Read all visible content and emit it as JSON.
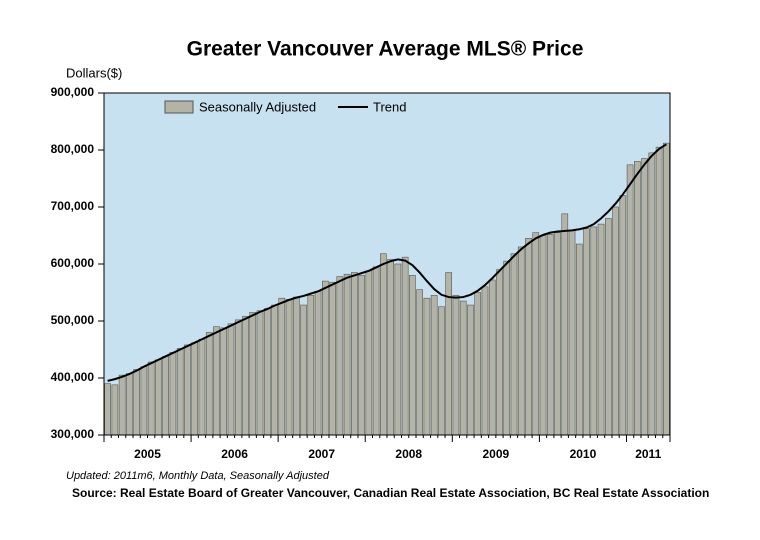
{
  "chart_data": {
    "type": "bar_line",
    "title": "Greater Vancouver Average MLS® Price",
    "y_label": "Dollars($)",
    "note": "Updated: 2011m6, Monthly Data, Seasonally Adjusted",
    "source": "Source: Real Estate Board of Greater Vancouver, Canadian Real Estate Association, BC Real Estate Association",
    "categories": [
      "2005",
      null,
      null,
      null,
      null,
      null,
      null,
      null,
      null,
      null,
      null,
      null,
      "2006",
      null,
      null,
      null,
      null,
      null,
      null,
      null,
      null,
      null,
      null,
      null,
      "2007",
      null,
      null,
      null,
      null,
      null,
      null,
      null,
      null,
      null,
      null,
      null,
      "2008",
      null,
      null,
      null,
      null,
      null,
      null,
      null,
      null,
      null,
      null,
      null,
      "2009",
      null,
      null,
      null,
      null,
      null,
      null,
      null,
      null,
      null,
      null,
      null,
      "2010",
      null,
      null,
      null,
      null,
      null,
      null,
      null,
      null,
      null,
      null,
      null,
      "2011",
      null,
      null,
      null,
      null,
      null
    ],
    "series": [
      {
        "name": "Seasonally Adjusted",
        "type": "bar",
        "color": "#b4b4a6",
        "values": [
          390000,
          388000,
          405000,
          408000,
          415000,
          420000,
          428000,
          432000,
          438000,
          445000,
          452000,
          458000,
          462000,
          468000,
          480000,
          490000,
          488000,
          495000,
          502000,
          508000,
          515000,
          518000,
          522000,
          528000,
          540000,
          538000,
          542000,
          528000,
          545000,
          552000,
          570000,
          568000,
          578000,
          582000,
          585000,
          580000,
          588000,
          595000,
          618000,
          608000,
          600000,
          612000,
          580000,
          555000,
          540000,
          545000,
          525000,
          585000,
          545000,
          535000,
          528000,
          550000,
          560000,
          572000,
          590000,
          605000,
          618000,
          630000,
          645000,
          655000,
          650000,
          652000,
          655000,
          688000,
          660000,
          635000,
          662000,
          665000,
          670000,
          680000,
          700000,
          720000,
          774000,
          780000,
          785000,
          795000,
          805000,
          812000
        ]
      },
      {
        "name": "Trend",
        "type": "line",
        "color": "#000000",
        "values": [
          395000,
          398000,
          402000,
          407000,
          413000,
          420000,
          426000,
          432000,
          438000,
          444000,
          450000,
          456000,
          462000,
          468000,
          474000,
          480000,
          486000,
          492000,
          498000,
          504000,
          510000,
          516000,
          521000,
          527000,
          532000,
          537000,
          541000,
          544000,
          548000,
          552000,
          558000,
          564000,
          570000,
          576000,
          580000,
          584000,
          588000,
          594000,
          600000,
          605000,
          608000,
          606000,
          598000,
          585000,
          570000,
          556000,
          546000,
          542000,
          541000,
          542000,
          546000,
          553000,
          563000,
          575000,
          588000,
          601000,
          614000,
          626000,
          636000,
          645000,
          651000,
          655000,
          657000,
          658000,
          659000,
          661000,
          664000,
          670000,
          680000,
          692000,
          706000,
          722000,
          740000,
          758000,
          775000,
          790000,
          802000,
          810000
        ]
      }
    ],
    "ylim": [
      300000,
      900000
    ],
    "yticks": [
      {
        "value": 300000,
        "label": "300,000"
      },
      {
        "value": 400000,
        "label": "400,000"
      },
      {
        "value": 500000,
        "label": "500,000"
      },
      {
        "value": 600000,
        "label": "600,000"
      },
      {
        "value": 700000,
        "label": "700,000"
      },
      {
        "value": 800000,
        "label": "800,000"
      },
      {
        "value": 900000,
        "label": "900,000"
      }
    ],
    "plot_background": "#c8e1f1"
  }
}
